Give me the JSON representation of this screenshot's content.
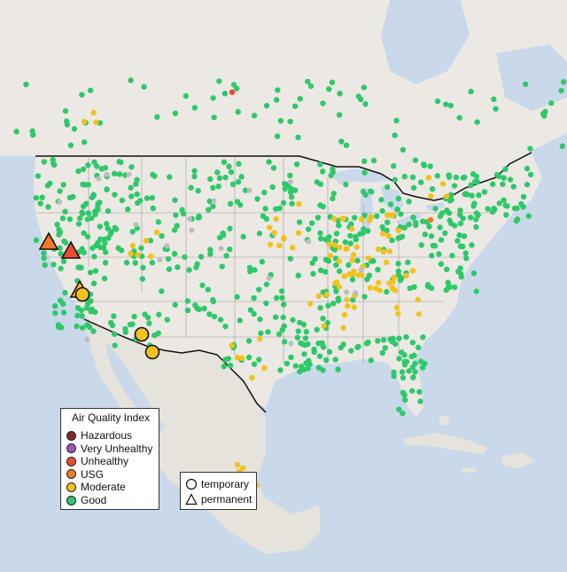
{
  "map": {
    "colors": {
      "ocean": "#c9d9ea",
      "land": "#ece9e4",
      "land_south": "#e6e3dc",
      "good": "#2ec86a",
      "moderate": "#f1c21c",
      "usg": "#f07b22",
      "unhealthy": "#ec4a33",
      "very_unhealthy": "#9b59b6",
      "hazardous": "#7b2a2a",
      "no_data": "#bdbdbd"
    }
  },
  "legend": {
    "title": "Air Quality Index",
    "items": [
      {
        "label": "Hazardous",
        "color": "#7b2a2a"
      },
      {
        "label": "Very Unhealthy",
        "color": "#9b59b6"
      },
      {
        "label": "Unhealthy",
        "color": "#ec4a33"
      },
      {
        "label": "USG",
        "color": "#f07b22"
      },
      {
        "label": "Moderate",
        "color": "#f1c21c"
      },
      {
        "label": "Good",
        "color": "#2ec86a"
      }
    ]
  },
  "monitor_types": {
    "temporary": "temporary",
    "permanent": "permanent",
    "temporary_icon": "circle-outline-icon",
    "permanent_icon": "triangle-outline-icon"
  }
}
